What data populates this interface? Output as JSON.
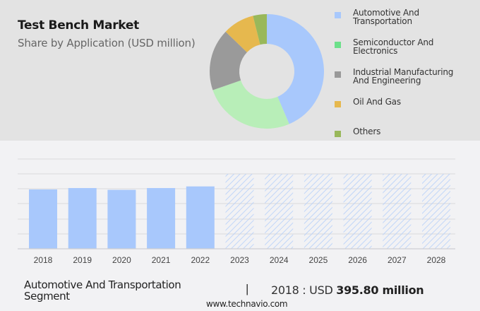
{
  "header": {
    "title": "Test Bench Market",
    "subtitle": "Share by Application (USD million)"
  },
  "legend": [
    {
      "label_line1": "Automotive And",
      "label_line2": "Transportation",
      "color": "#a8c8fc"
    },
    {
      "label_line1": "Semiconductor And",
      "label_line2": "Electronics",
      "color": "#6ce08a"
    },
    {
      "label_line1": "Industrial Manufacturing",
      "label_line2": "And Engineering",
      "color": "#999999"
    },
    {
      "label_line1": "Oil And Gas",
      "label_line2": "",
      "color": "#e6b84e"
    },
    {
      "label_line1": "Others",
      "label_line2": "",
      "color": "#99b85a"
    }
  ],
  "footer": {
    "segment_line1": "Automotive And Transportation",
    "segment_line2": "Segment",
    "separator": "|",
    "value_prefix": "2018 : USD ",
    "value_bold": "395.80 million",
    "url": "www.technavio.com"
  },
  "chart_data": [
    {
      "type": "pie",
      "title": "Test Bench Market",
      "subtitle": "Share by Application (USD million)",
      "donut": true,
      "categories": [
        "Automotive And Transportation",
        "Semiconductor And Electronics",
        "Industrial Manufacturing And Engineering",
        "Oil And Gas",
        "Others"
      ],
      "values": [
        43.6,
        26.1,
        17.5,
        8.9,
        3.9
      ],
      "colors": [
        "#a8c8fc",
        "#b8eeb8",
        "#9a9a9a",
        "#e6b84e",
        "#99b85a"
      ],
      "legend_position": "right"
    },
    {
      "type": "bar",
      "title": "Automotive And Transportation Segment",
      "categories": [
        "2018",
        "2019",
        "2020",
        "2021",
        "2022",
        "2023",
        "2024",
        "2025",
        "2026",
        "2027",
        "2028"
      ],
      "values": [
        395.8,
        405,
        393,
        405,
        416,
        null,
        null,
        null,
        null,
        null,
        null
      ],
      "forecast_placeholder": [
        false,
        false,
        false,
        false,
        false,
        true,
        true,
        true,
        true,
        true,
        true
      ],
      "xlabel": "",
      "ylabel": "",
      "grid": true,
      "annotation": "2018 : USD 395.80 million",
      "bar_color": "#a8c8fc"
    }
  ]
}
